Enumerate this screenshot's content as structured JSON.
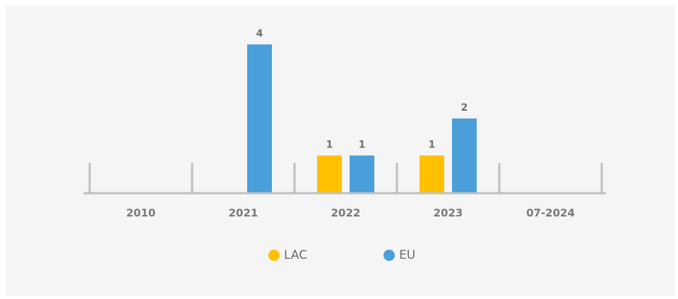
{
  "chart_data": {
    "type": "bar",
    "categories": [
      "2010",
      "2021",
      "2022",
      "2023",
      "07-2024"
    ],
    "series": [
      {
        "name": "LAC",
        "color": "#FFC000",
        "values": [
          0,
          0,
          1,
          1,
          0
        ]
      },
      {
        "name": "EU",
        "color": "#4A9FDA",
        "values": [
          0,
          4,
          1,
          2,
          0
        ]
      }
    ],
    "ylim": [
      0,
      4
    ],
    "legend": "bottom",
    "grid": false,
    "data_labels": true
  }
}
